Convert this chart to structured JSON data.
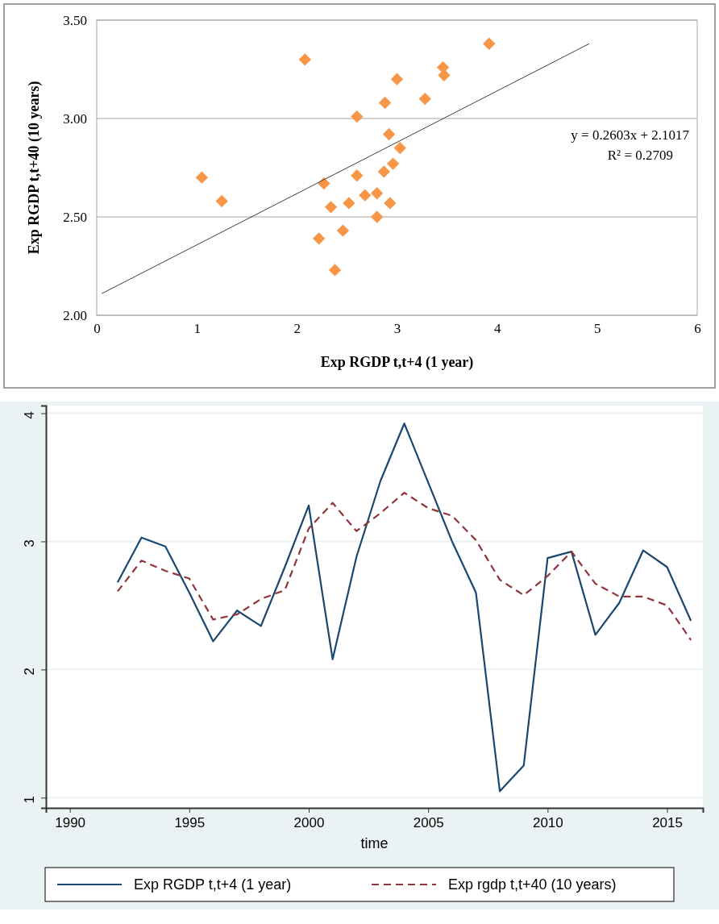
{
  "chart_data": [
    {
      "type": "scatter",
      "xlabel": "Exp RGDP t,t+4 (1 year)",
      "ylabel": "Exp RGDP t,t+40 (10 years)",
      "xlim": [
        0,
        6
      ],
      "xticks": [
        0,
        1,
        2,
        3,
        4,
        5,
        6
      ],
      "ylim": [
        2,
        3.5
      ],
      "yticks": [
        {
          "value": 2,
          "label": "2.00"
        },
        {
          "value": 2.5,
          "label": "2.50"
        },
        {
          "value": 3,
          "label": "3.00"
        },
        {
          "value": 3.5,
          "label": "3.50"
        }
      ],
      "grid": "y",
      "legend": false,
      "marker": "diamond",
      "annotations": [
        "y = 0.2603x + 2.1017",
        "R² = 0.2709"
      ],
      "series": [
        {
          "color": "#f79646",
          "x": [
            2.68,
            3.03,
            2.96,
            2.6,
            2.22,
            2.46,
            2.34,
            2.8,
            3.28,
            2.08,
            2.88,
            3.47,
            3.92,
            3.46,
            3.0,
            2.6,
            1.05,
            1.25,
            2.87,
            2.92,
            2.27,
            2.52,
            2.93,
            2.8,
            2.38
          ],
          "values": [
            2.61,
            2.85,
            2.77,
            2.71,
            2.39,
            2.43,
            2.55,
            2.62,
            3.1,
            3.3,
            3.08,
            3.22,
            3.38,
            3.26,
            3.2,
            3.01,
            2.7,
            2.58,
            2.73,
            2.92,
            2.67,
            2.57,
            2.57,
            2.5,
            2.23
          ]
        },
        {
          "type": "line",
          "color": "#404040",
          "marker": "none",
          "x": [
            0.05,
            4.92
          ],
          "values": [
            2.11,
            3.38
          ]
        }
      ]
    },
    {
      "type": "line",
      "xlabel": "time",
      "xlim": [
        1989,
        2016.5
      ],
      "xticks": [
        1990,
        1995,
        2000,
        2005,
        2010,
        2015
      ],
      "ylim": [
        0.92,
        4.06
      ],
      "yticks": [
        1,
        2,
        3,
        4
      ],
      "grid": "y",
      "legend": "bottom",
      "marker": "none",
      "x": [
        1992,
        1993,
        1994,
        1995,
        1996,
        1997,
        1998,
        1999,
        2000,
        2001,
        2002,
        2003,
        2004,
        2005,
        2006,
        2007,
        2008,
        2009,
        2010,
        2011,
        2012,
        2013,
        2014,
        2015,
        2016
      ],
      "series": [
        {
          "name": "Exp RGDP t,t+4 (1 year)",
          "color": "#1a476f",
          "line_style": "solid",
          "values": [
            2.68,
            3.03,
            2.96,
            2.6,
            2.22,
            2.46,
            2.34,
            2.8,
            3.28,
            2.08,
            2.88,
            3.47,
            3.92,
            3.46,
            3.0,
            2.6,
            1.05,
            1.25,
            2.87,
            2.92,
            2.27,
            2.52,
            2.93,
            2.8,
            2.38
          ]
        },
        {
          "name": "Exp rgdp t,t+40 (10 years)",
          "color": "#90353b",
          "line_style": "dashed",
          "values": [
            2.61,
            2.85,
            2.77,
            2.71,
            2.39,
            2.43,
            2.55,
            2.62,
            3.1,
            3.3,
            3.08,
            3.22,
            3.38,
            3.26,
            3.2,
            3.01,
            2.7,
            2.58,
            2.73,
            2.92,
            2.67,
            2.57,
            2.57,
            2.5,
            2.23
          ]
        }
      ]
    }
  ]
}
